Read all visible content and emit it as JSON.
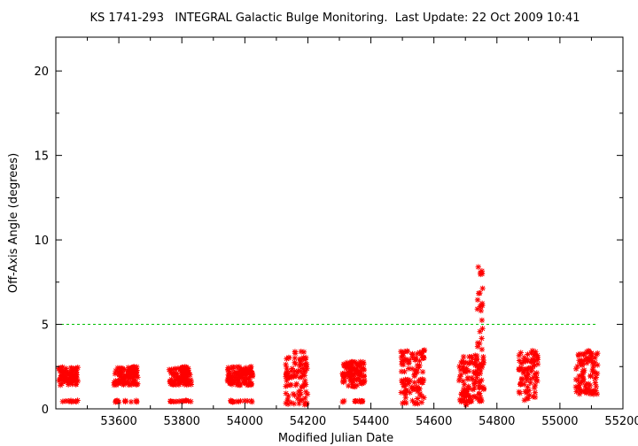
{
  "chart_data": {
    "type": "scatter",
    "title": "KS 1741-293   INTEGRAL Galactic Bulge Monitoring.  Last Update: 22 Oct 2009 10:41",
    "xlabel": "Modified Julian Date",
    "ylabel": "Off-Axis Angle (degrees)",
    "xlim": [
      53400,
      55200
    ],
    "ylim": [
      0,
      22
    ],
    "x_ticks": [
      {
        "value": 53600,
        "label": "53600"
      },
      {
        "value": 53800,
        "label": "53800"
      },
      {
        "value": 54000,
        "label": "54000"
      },
      {
        "value": 54200,
        "label": "54200"
      },
      {
        "value": 54400,
        "label": "54400"
      },
      {
        "value": 54600,
        "label": "54600"
      },
      {
        "value": 54800,
        "label": "54800"
      },
      {
        "value": 55000,
        "label": "55000"
      },
      {
        "value": 55200,
        "label": "55200"
      }
    ],
    "y_ticks": [
      {
        "value": 0,
        "label": "0"
      },
      {
        "value": 5,
        "label": "5"
      },
      {
        "value": 10,
        "label": "10"
      },
      {
        "value": 15,
        "label": "15"
      },
      {
        "value": 20,
        "label": "20"
      }
    ],
    "grid": false,
    "marker": "asterisk",
    "marker_color": "#ff0000",
    "reference_line": {
      "y": 5,
      "x_range": [
        53400,
        55120
      ],
      "color": "#00c000",
      "style": "dashed"
    },
    "observation_windows": [
      {
        "x_range": [
          53410,
          53470
        ],
        "y_range": [
          1.4,
          2.5
        ],
        "extra_y": 0.45
      },
      {
        "x_range": [
          53585,
          53660
        ],
        "y_range": [
          1.4,
          2.5
        ],
        "extra_y": 0.45
      },
      {
        "x_range": [
          53760,
          53830
        ],
        "y_range": [
          1.4,
          2.5
        ],
        "extra_y": 0.45
      },
      {
        "x_range": [
          53945,
          54025
        ],
        "y_range": [
          1.4,
          2.5
        ],
        "extra_y": 0.45
      },
      {
        "x_range": [
          54130,
          54200
        ],
        "y_range": [
          0.2,
          3.5
        ]
      },
      {
        "x_range": [
          54310,
          54380
        ],
        "y_range": [
          1.3,
          2.8
        ],
        "extra_y": 0.45
      },
      {
        "x_range": [
          54495,
          54570
        ],
        "y_range": [
          0.3,
          3.5
        ]
      },
      {
        "x_range": [
          54680,
          54760
        ],
        "y_range": [
          0.2,
          3.2
        ],
        "extra_y": 0.45
      },
      {
        "x_range": [
          54737,
          54755
        ],
        "y_range": [
          3.5,
          8.6
        ]
      },
      {
        "x_range": [
          54870,
          54930
        ],
        "y_range": [
          0.5,
          3.5
        ]
      },
      {
        "x_range": [
          55050,
          55120
        ],
        "y_range": [
          0.8,
          3.5
        ]
      }
    ]
  }
}
